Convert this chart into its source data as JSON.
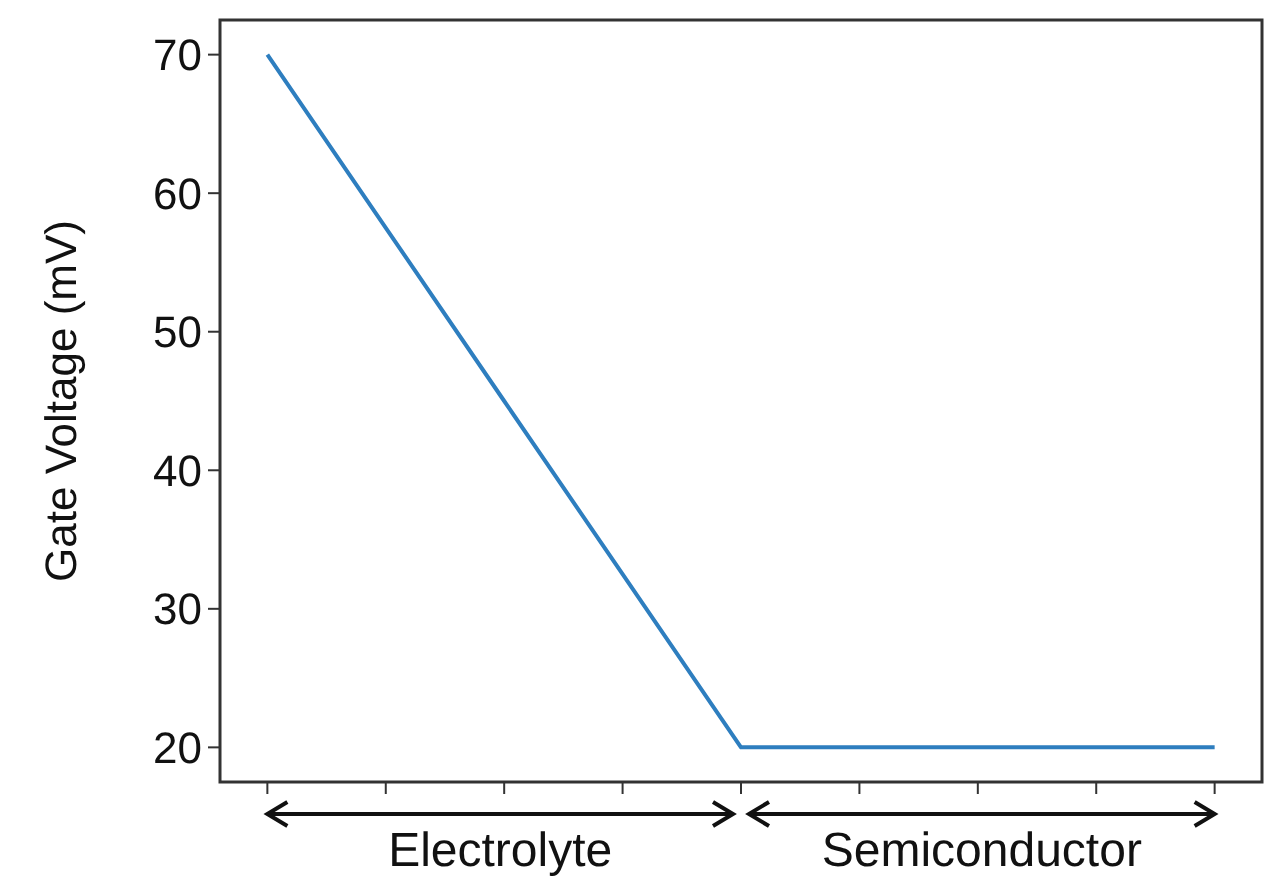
{
  "chart_data": {
    "type": "line",
    "ylabel": "Gate Voltage (mV)",
    "categories": [
      null,
      null,
      null,
      null,
      null,
      null,
      null,
      null,
      null
    ],
    "series": [
      {
        "color": "#2e7ebf",
        "values": [
          70,
          57.5,
          45,
          32.5,
          20,
          20,
          20,
          20,
          20
        ]
      }
    ],
    "ylim": [
      17.5,
      72.5
    ],
    "yticks": [
      20,
      30,
      40,
      50,
      60,
      70
    ],
    "marker": "none",
    "line_style": "solid",
    "annotations": [
      "Electrolyte",
      "Semiconductor"
    ]
  }
}
